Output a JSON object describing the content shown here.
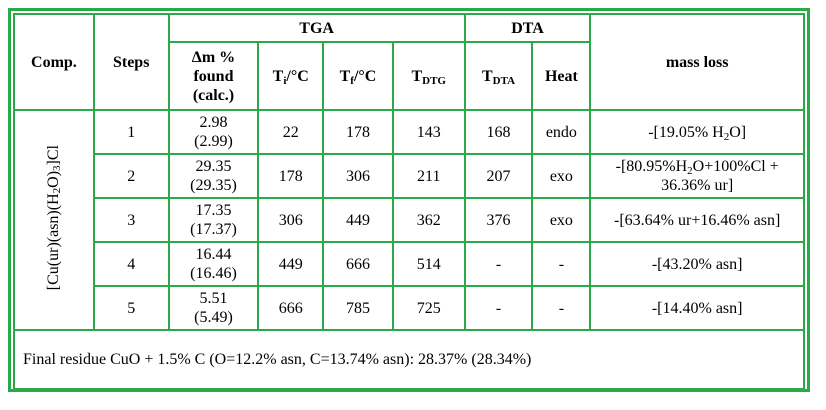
{
  "header": {
    "comp": "Comp.",
    "steps": "Steps",
    "tga": "TGA",
    "dta": "DTA",
    "mass_loss": "mass loss",
    "dm_line1": "Δm %",
    "dm_line2": "found",
    "dm_line3": "(calc.)",
    "ti": "Ti/°C",
    "tf": "Tf/°C",
    "tdtg": "TDTG",
    "tdta": "TDTA",
    "heat": "Heat"
  },
  "compound": "[Cu(ur)(asn)(H2O)3]Cl",
  "rows": [
    {
      "step": "1",
      "found": "2.98",
      "calc": "(2.99)",
      "ti": "22",
      "tf": "178",
      "tdtg": "143",
      "tdta": "168",
      "heat": "endo",
      "loss1": "-[19.05% H2O]",
      "loss2": ""
    },
    {
      "step": "2",
      "found": "29.35",
      "calc": "(29.35)",
      "ti": "178",
      "tf": "306",
      "tdtg": "211",
      "tdta": "207",
      "heat": "exo",
      "loss1": "-[80.95%H2O+100%Cl +",
      "loss2": "36.36% ur]"
    },
    {
      "step": "3",
      "found": "17.35",
      "calc": "(17.37)",
      "ti": "306",
      "tf": "449",
      "tdtg": "362",
      "tdta": "376",
      "heat": "exo",
      "loss1": "-[63.64% ur+16.46% asn]",
      "loss2": ""
    },
    {
      "step": "4",
      "found": "16.44",
      "calc": "(16.46)",
      "ti": "449",
      "tf": "666",
      "tdtg": "514",
      "tdta": "-",
      "heat": "-",
      "loss1": "-[43.20% asn]",
      "loss2": ""
    },
    {
      "step": "5",
      "found": "5.51",
      "calc": "(5.49)",
      "ti": "666",
      "tf": "785",
      "tdtg": "725",
      "tdta": "-",
      "heat": "-",
      "loss1": "-[14.40% asn]",
      "loss2": ""
    }
  ],
  "footer": "Final residue CuO + 1.5% C (O=12.2% asn, C=13.74% asn): 28.37% (28.34%)",
  "colors": {
    "border": "#2aa84a"
  }
}
